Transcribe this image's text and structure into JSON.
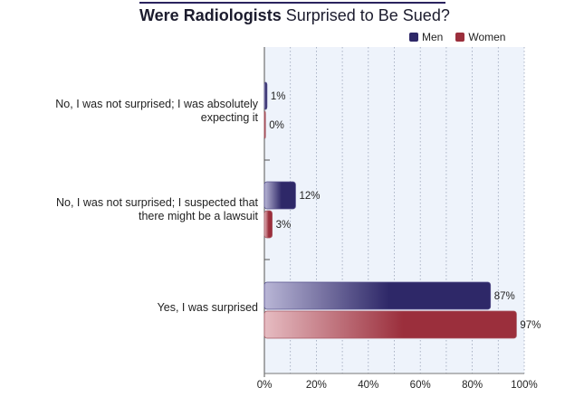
{
  "title_bold": "Were Radiologists",
  "title_rest": "Surprised to Be Sued?",
  "legend": [
    {
      "name": "Men",
      "color": "#2e2868"
    },
    {
      "name": "Women",
      "color": "#9b2f3c"
    }
  ],
  "chart_data": {
    "type": "bar",
    "orientation": "horizontal",
    "categories": [
      "No, I was not surprised; I was absolutely expecting it",
      "No, I was not surprised; I suspected that there might be a lawsuit",
      "Yes, I was surprised"
    ],
    "category_lines": [
      [
        "No, I was not surprised; I was absolutely",
        "expecting it"
      ],
      [
        "No, I was not surprised; I suspected that",
        "there might be a lawsuit"
      ],
      [
        "Yes, I was surprised"
      ]
    ],
    "series": [
      {
        "name": "Men",
        "values": [
          1,
          12,
          87
        ],
        "labels": [
          "1%",
          "12%",
          "87%"
        ],
        "color": "#2e2868"
      },
      {
        "name": "Women",
        "values": [
          0,
          3,
          97
        ],
        "labels": [
          "0%",
          "3%",
          "97%"
        ],
        "color": "#9b2f3c"
      }
    ],
    "xlim": [
      0,
      100
    ],
    "xticks": [
      "0%",
      "20%",
      "40%",
      "60%",
      "80%",
      "100%"
    ],
    "title": "Were Radiologists Surprised to Be Sued?",
    "legend_position": "top-right",
    "grid": true
  }
}
